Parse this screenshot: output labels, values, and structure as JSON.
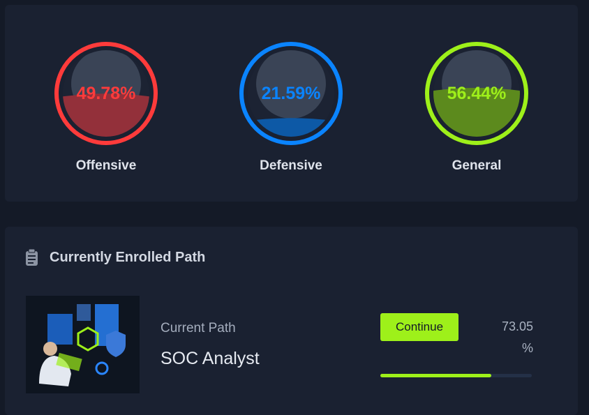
{
  "stats": [
    {
      "label": "Offensive",
      "percent": {
        "value": 49.78,
        "label": "49.78%"
      },
      "color": "#ff3b3b",
      "fill": "#93303a"
    },
    {
      "label": "Defensive",
      "percent": {
        "value": 21.59,
        "label": "21.59%"
      },
      "color": "#0a84ff",
      "fill": "#0d59a6"
    },
    {
      "label": "General",
      "percent": {
        "value": 56.44,
        "label": "56.44%"
      },
      "color": "#9ef01a",
      "fill": "#5c8a1d"
    }
  ],
  "enrolled": {
    "title": "Currently Enrolled Path",
    "subtitle": "Current Path",
    "path_name": "SOC Analyst",
    "button": "Continue",
    "progress": {
      "value": 73.05,
      "label": "73.05 %"
    }
  }
}
